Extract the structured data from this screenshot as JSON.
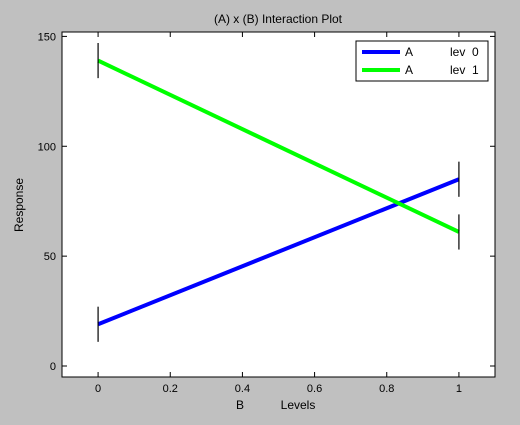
{
  "chart_data": {
    "type": "line",
    "title": "(A) x (B) Interaction Plot",
    "xlabel_parts": [
      "B",
      "Levels"
    ],
    "ylabel": "Response",
    "xlim": [
      -0.1,
      1.1
    ],
    "ylim": [
      -5,
      152
    ],
    "x_ticks": [
      0,
      0.2,
      0.4,
      0.6,
      0.8,
      1
    ],
    "x_tick_labels": [
      "0",
      "0.2",
      "0.4",
      "0.6",
      "0.8",
      "1"
    ],
    "y_ticks": [
      0,
      50,
      100,
      150
    ],
    "y_tick_labels": [
      "0",
      "50",
      "100",
      "150"
    ],
    "grid": false,
    "legend_position": "top-right",
    "series": [
      {
        "name": "A",
        "level_label": "lev  0",
        "color": "#0000ff",
        "x": [
          0,
          1
        ],
        "y": [
          19,
          85
        ],
        "error_low": [
          11,
          77
        ],
        "error_high": [
          27,
          93
        ]
      },
      {
        "name": "A",
        "level_label": "lev  1",
        "color": "#00ff00",
        "x": [
          0,
          1
        ],
        "y": [
          139,
          61
        ],
        "error_low": [
          131,
          53
        ],
        "error_high": [
          147,
          69
        ]
      }
    ]
  }
}
